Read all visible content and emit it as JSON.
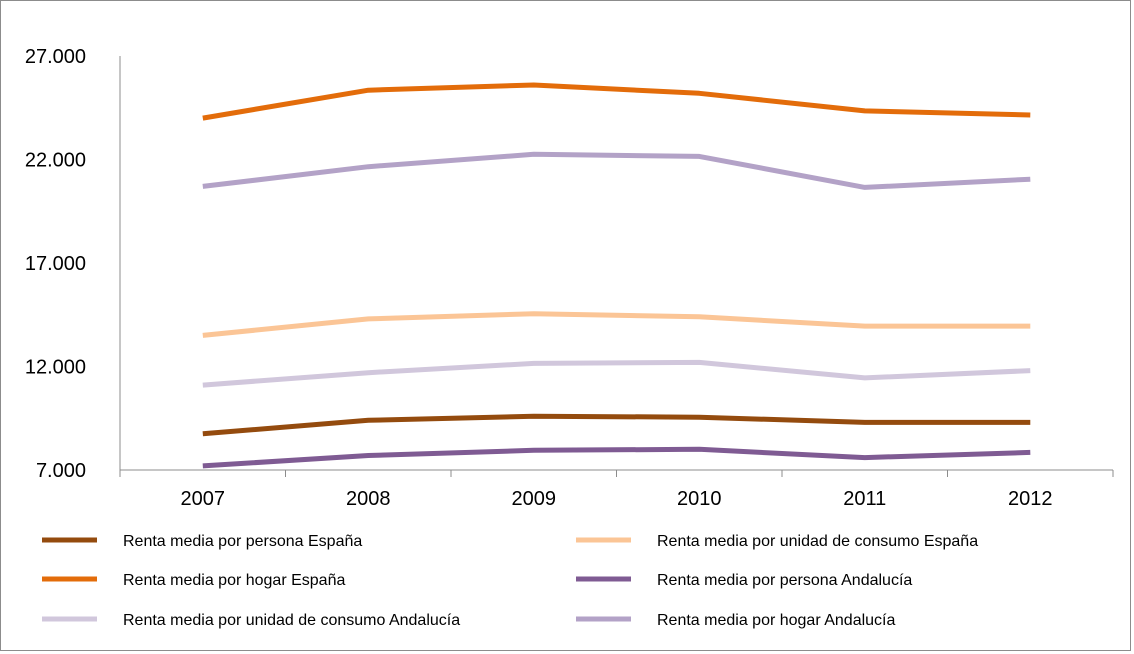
{
  "chart_data": {
    "type": "line",
    "categories": [
      "2007",
      "2008",
      "2009",
      "2010",
      "2011",
      "2012"
    ],
    "y_ticks": [
      "7.000",
      "12.000",
      "17.000",
      "22.000",
      "27.000"
    ],
    "ylim": [
      7000,
      27000
    ],
    "grid": false,
    "legend_position": "bottom",
    "series": [
      {
        "name": "Renta media por persona España",
        "color": "#944b0e",
        "values": [
          8750,
          9400,
          9600,
          9550,
          9300,
          9300
        ]
      },
      {
        "name": "Renta media por unidad de consumo España",
        "color": "#fbc596",
        "values": [
          13500,
          14300,
          14550,
          14400,
          13950,
          13950
        ]
      },
      {
        "name": "Renta media por hogar España",
        "color": "#e36c0a",
        "values": [
          24000,
          25350,
          25600,
          25200,
          24350,
          24150
        ]
      },
      {
        "name": "Renta media por persona Andalucía",
        "color": "#7f5b93",
        "values": [
          7200,
          7700,
          7950,
          8000,
          7600,
          7850
        ]
      },
      {
        "name": "Renta media por unidad de consumo Andalucía",
        "color": "#d1c7dc",
        "values": [
          11100,
          11700,
          12150,
          12200,
          11450,
          11800
        ]
      },
      {
        "name": "Renta media por hogar Andalucía",
        "color": "#b3a2c7",
        "values": [
          20700,
          21650,
          22250,
          22150,
          20650,
          21050
        ]
      }
    ]
  }
}
